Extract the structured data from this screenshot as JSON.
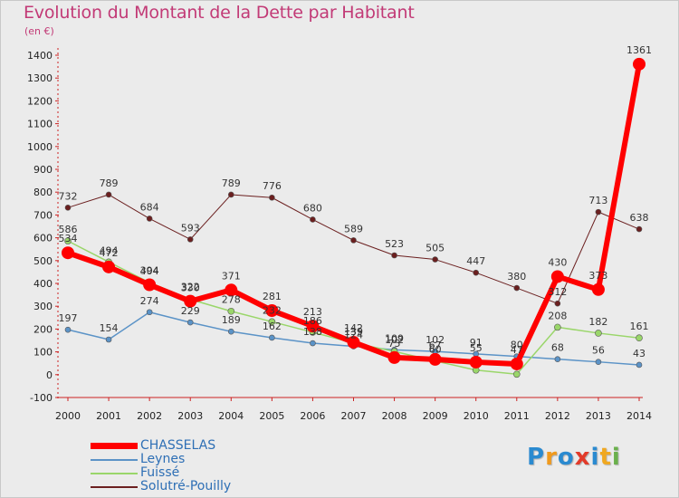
{
  "title": "Evolution du Montant de la Dette par Habitant",
  "unit": "(en €)",
  "logo": {
    "letters": [
      "P",
      "r",
      "o",
      "x",
      "i",
      "t",
      "i"
    ],
    "colors": [
      "#2a8ad0",
      "#f09a1e",
      "#2a8ad0",
      "#e23b2a",
      "#2a8ad0",
      "#f0a820",
      "#6ab04c"
    ]
  },
  "chart_data": {
    "type": "line",
    "title": "Evolution du Montant de la Dette par Habitant",
    "ylabel": "(en €)",
    "xlabel": "",
    "x": [
      "2000",
      "2001",
      "2002",
      "2003",
      "2004",
      "2005",
      "2006",
      "2007",
      "2008",
      "2009",
      "2010",
      "2011",
      "2012",
      "2013",
      "2014"
    ],
    "ylim": [
      -100,
      1400
    ],
    "yticks": [
      -100,
      0,
      100,
      200,
      300,
      400,
      500,
      600,
      700,
      800,
      900,
      1000,
      1100,
      1200,
      1300,
      1400
    ],
    "grid": false,
    "legend_position": "bottom-left",
    "series": [
      {
        "name": "Solutré-Pouilly",
        "color": "#6b1f1f",
        "width": 1,
        "marker": 3,
        "values": [
          732,
          789,
          684,
          593,
          789,
          776,
          680,
          589,
          523,
          505,
          447,
          380,
          312,
          713,
          638
        ],
        "labels": [
          "732",
          "789",
          "684",
          "593",
          "789",
          "776",
          "680",
          "589",
          "523",
          "505",
          "447",
          "380",
          "312",
          "713",
          "638"
        ],
        "label_pos": "above"
      },
      {
        "name": "Leynes",
        "color": "#5b93c7",
        "width": 1.5,
        "marker": 3,
        "values": [
          197,
          154,
          274,
          229,
          189,
          162,
          138,
          124,
          109,
          102,
          91,
          80,
          68,
          56,
          43
        ],
        "labels": [
          "197",
          "154",
          "274",
          "229",
          "189",
          "162",
          "138",
          "124",
          "109",
          "102",
          "91",
          "80",
          "68",
          "56",
          "43"
        ],
        "label_pos": "above"
      },
      {
        "name": "Fuissé",
        "color": "#9ad66a",
        "width": 1.5,
        "marker": 3.5,
        "values": [
          586,
          494,
          404,
          330,
          278,
          232,
          186,
          139,
          102,
          60,
          20,
          2,
          208,
          182,
          161
        ],
        "labels": [
          "586",
          "494",
          "404",
          "330",
          "278",
          "232",
          "186",
          "139",
          "102",
          "60",
          "",
          "",
          "208",
          "182",
          "161"
        ],
        "label_pos": "above"
      },
      {
        "name": "CHASSELAS",
        "color": "#ff0000",
        "width": 6,
        "marker": 7,
        "values": [
          534,
          472,
          394,
          322,
          371,
          281,
          213,
          142,
          75,
          67,
          55,
          47,
          430,
          373,
          1361
        ],
        "labels": [
          "534",
          "472",
          "394",
          "322",
          "371",
          "281",
          "213",
          "142",
          "75",
          "67",
          "55",
          "47",
          "430",
          "373",
          "1361"
        ],
        "label_pos": "above"
      }
    ],
    "legend_order": [
      "CHASSELAS",
      "Leynes",
      "Fuissé",
      "Solutré-Pouilly"
    ]
  }
}
